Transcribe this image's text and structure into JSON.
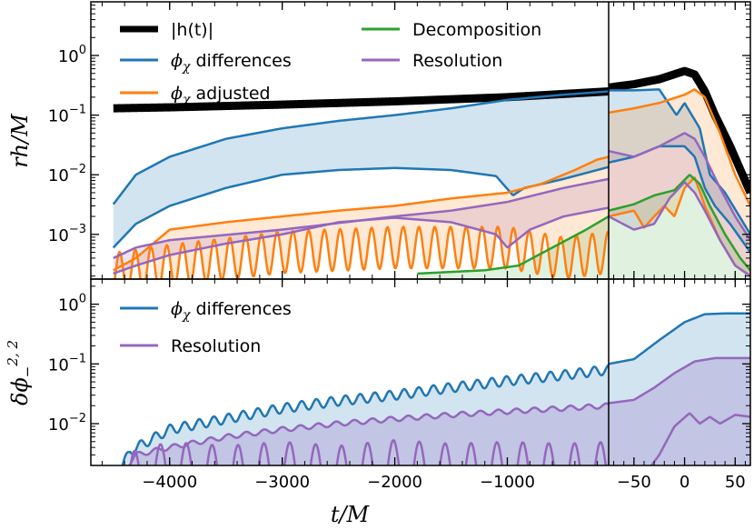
{
  "chart_data": {
    "type": "line",
    "xlabel": "t/M",
    "x_ticks_left": [
      "-4000",
      "-3000",
      "-2000",
      "-1000"
    ],
    "x_ticks_right": [
      "-50",
      "0",
      "50"
    ],
    "x_range_left": [
      -4700,
      -100
    ],
    "x_range_right": [
      -75,
      65
    ],
    "colors": {
      "black": "#000000",
      "blue": "#1f77b4",
      "orange": "#ff7f0e",
      "green": "#2ca02c",
      "purple": "#9467bd"
    },
    "top": {
      "ylabel": "rh/M",
      "y_tick_labels": [
        "10^-3",
        "10^-2",
        "10^-1",
        "10^0"
      ],
      "y_log_range": [
        -3.75,
        0.9
      ],
      "legend": [
        {
          "label": "|h(t)|",
          "color": "#000000",
          "math": false
        },
        {
          "label": "ϕ",
          "sub": "χ",
          "rest": " differences",
          "color": "#1f77b4",
          "math": true
        },
        {
          "label": "ϕ",
          "sub": "χ",
          "rest": " adjusted",
          "color": "#ff7f0e",
          "math": true
        },
        {
          "label": "Decomposition",
          "color": "#2ca02c",
          "math": false
        },
        {
          "label": "Resolution",
          "color": "#9467bd",
          "math": false
        }
      ],
      "series": [
        {
          "name": "|h(t)|",
          "color": "#000000",
          "width": 9,
          "points": [
            [
              -4500,
              0.13
            ],
            [
              -4000,
              0.135
            ],
            [
              -3000,
              0.15
            ],
            [
              -2000,
              0.17
            ],
            [
              -1000,
              0.2
            ],
            [
              -100,
              0.25
            ],
            [
              -75,
              0.29
            ],
            [
              -50,
              0.33
            ],
            [
              -25,
              0.4
            ],
            [
              0,
              0.55
            ],
            [
              10,
              0.48
            ],
            [
              20,
              0.25
            ],
            [
              30,
              0.1
            ],
            [
              45,
              0.03
            ],
            [
              65,
              0.005
            ]
          ]
        },
        {
          "name": "ϕχ differences (upper)",
          "color": "#1f77b4",
          "width": 2.5,
          "points": [
            [
              -4500,
              0.0032
            ],
            [
              -4300,
              0.01
            ],
            [
              -4000,
              0.02
            ],
            [
              -3500,
              0.04
            ],
            [
              -3000,
              0.06
            ],
            [
              -2500,
              0.08
            ],
            [
              -2000,
              0.1
            ],
            [
              -1500,
              0.13
            ],
            [
              -1000,
              0.18
            ],
            [
              -500,
              0.22
            ],
            [
              -100,
              0.25
            ],
            [
              -75,
              0.26
            ],
            [
              -50,
              0.26
            ],
            [
              -25,
              0.27
            ],
            [
              -15,
              0.15
            ],
            [
              -8,
              0.1
            ],
            [
              0,
              0.16
            ],
            [
              15,
              0.06
            ],
            [
              25,
              0.01
            ],
            [
              40,
              0.005
            ],
            [
              65,
              0.001
            ]
          ]
        },
        {
          "name": "ϕχ differences (lower)",
          "color": "#1f77b4",
          "width": 2.5,
          "points": [
            [
              -4500,
              0.0006
            ],
            [
              -4300,
              0.0015
            ],
            [
              -4000,
              0.003
            ],
            [
              -3500,
              0.006
            ],
            [
              -3000,
              0.01
            ],
            [
              -2500,
              0.012
            ],
            [
              -2000,
              0.013
            ],
            [
              -1500,
              0.012
            ],
            [
              -1100,
              0.0095
            ],
            [
              -950,
              0.0045
            ],
            [
              -850,
              0.006
            ],
            [
              -500,
              0.0085
            ],
            [
              -100,
              0.0135
            ],
            [
              -75,
              0.016
            ],
            [
              -50,
              0.02
            ],
            [
              -25,
              0.03
            ],
            [
              0,
              0.03
            ],
            [
              10,
              0.02
            ],
            [
              20,
              0.006
            ],
            [
              30,
              0.003
            ],
            [
              45,
              0.0015
            ],
            [
              65,
              0.0005
            ]
          ]
        },
        {
          "name": "ϕχ adjusted (upper)",
          "color": "#ff7f0e",
          "width": 2.5,
          "points": [
            [
              -4500,
              0.00025
            ],
            [
              -4300,
              0.0004
            ],
            [
              -4000,
              0.0012
            ],
            [
              -3500,
              0.0016
            ],
            [
              -3000,
              0.002
            ],
            [
              -2500,
              0.0025
            ],
            [
              -2000,
              0.003
            ],
            [
              -1500,
              0.004
            ],
            [
              -1000,
              0.005
            ],
            [
              -700,
              0.007
            ],
            [
              -400,
              0.012
            ],
            [
              -200,
              0.018
            ],
            [
              -100,
              0.02
            ],
            [
              -75,
              0.11
            ],
            [
              -50,
              0.13
            ],
            [
              -25,
              0.16
            ],
            [
              0,
              0.22
            ],
            [
              10,
              0.27
            ],
            [
              20,
              0.2
            ],
            [
              35,
              0.05
            ],
            [
              50,
              0.01
            ],
            [
              65,
              0.003
            ]
          ]
        },
        {
          "name": "ϕχ adjusted (lower, oscillating)",
          "color": "#ff7f0e",
          "width": 2.5,
          "oscillate": true,
          "osc_amp": 0.35,
          "osc_period": 140,
          "points": [
            [
              -4500,
              0.00022
            ],
            [
              -4000,
              0.0003
            ],
            [
              -3000,
              0.0005
            ],
            [
              -2000,
              0.0006
            ],
            [
              -1500,
              0.0006
            ],
            [
              -1000,
              0.0006
            ],
            [
              -500,
              0.0004
            ],
            [
              -100,
              0.0005
            ],
            [
              -75,
              0.002
            ],
            [
              -50,
              0.0025
            ],
            [
              -40,
              0.0013
            ],
            [
              -30,
              0.002
            ],
            [
              -20,
              0.003
            ],
            [
              -10,
              0.002
            ],
            [
              0,
              0.006
            ],
            [
              10,
              0.009
            ],
            [
              20,
              0.003
            ],
            [
              35,
              0.0008
            ],
            [
              50,
              0.0003
            ],
            [
              65,
              0.0002
            ]
          ]
        },
        {
          "name": "Decomposition",
          "color": "#2ca02c",
          "width": 2.5,
          "points": [
            [
              -1800,
              0.00022
            ],
            [
              -1200,
              0.00025
            ],
            [
              -900,
              0.0003
            ],
            [
              -600,
              0.0006
            ],
            [
              -300,
              0.0012
            ],
            [
              -100,
              0.002
            ],
            [
              -75,
              0.0025
            ],
            [
              -50,
              0.0032
            ],
            [
              -30,
              0.0045
            ],
            [
              -10,
              0.0055
            ],
            [
              5,
              0.01
            ],
            [
              15,
              0.007
            ],
            [
              25,
              0.003
            ],
            [
              40,
              0.001
            ],
            [
              55,
              0.0004
            ],
            [
              65,
              0.00025
            ]
          ]
        },
        {
          "name": "Resolution (upper)",
          "color": "#9467bd",
          "width": 2.5,
          "points": [
            [
              -4500,
              0.0004
            ],
            [
              -4300,
              0.0006
            ],
            [
              -4000,
              0.0008
            ],
            [
              -3000,
              0.0012
            ],
            [
              -2000,
              0.002
            ],
            [
              -1500,
              0.0025
            ],
            [
              -1000,
              0.0035
            ],
            [
              -500,
              0.006
            ],
            [
              -100,
              0.0085
            ],
            [
              -75,
              0.025
            ],
            [
              -50,
              0.02
            ],
            [
              -25,
              0.03
            ],
            [
              0,
              0.05
            ],
            [
              10,
              0.04
            ],
            [
              20,
              0.02
            ],
            [
              35,
              0.006
            ],
            [
              50,
              0.002
            ],
            [
              65,
              0.0008
            ]
          ]
        },
        {
          "name": "Resolution (lower)",
          "color": "#9467bd",
          "width": 2.5,
          "points": [
            [
              -4500,
              0.00022
            ],
            [
              -4300,
              0.0003
            ],
            [
              -4000,
              0.00045
            ],
            [
              -3500,
              0.0007
            ],
            [
              -3000,
              0.001
            ],
            [
              -2500,
              0.0016
            ],
            [
              -2000,
              0.0019
            ],
            [
              -1500,
              0.0016
            ],
            [
              -1100,
              0.001
            ],
            [
              -1000,
              0.0006
            ],
            [
              -800,
              0.0012
            ],
            [
              -500,
              0.002
            ],
            [
              -100,
              0.0028
            ],
            [
              -75,
              0.002
            ],
            [
              -50,
              0.0012
            ],
            [
              -30,
              0.0015
            ],
            [
              -15,
              0.004
            ],
            [
              0,
              0.0075
            ],
            [
              10,
              0.005
            ],
            [
              20,
              0.0025
            ],
            [
              35,
              0.0008
            ],
            [
              50,
              0.0003
            ],
            [
              65,
              0.0002
            ]
          ]
        }
      ],
      "fills": [
        {
          "upper": 1,
          "lower": 2,
          "color": "#1f77b4",
          "opacity": 0.2
        },
        {
          "upper": 3,
          "lower": 4,
          "color": "#ff7f0e",
          "opacity": 0.18
        },
        {
          "upper": 6,
          "lower": 7,
          "color": "#9467bd",
          "opacity": 0.18
        },
        {
          "upper": 5,
          "lower": "bottom",
          "color": "#2ca02c",
          "opacity": 0.15
        }
      ]
    },
    "bottom": {
      "ylabel": "δϕ",
      "ylabel_sub": "−",
      "ylabel_sup": "2, 2",
      "y_tick_labels": [
        "10^-2",
        "10^-1",
        "10^0"
      ],
      "y_log_range": [
        -2.7,
        0.42
      ],
      "legend": [
        {
          "label": "ϕ",
          "sub": "χ",
          "rest": " differences",
          "color": "#1f77b4",
          "math": true
        },
        {
          "label": "Resolution",
          "color": "#9467bd",
          "math": false
        }
      ],
      "series": [
        {
          "name": "ϕχ differences",
          "color": "#1f77b4",
          "width": 2.5,
          "oscillate": true,
          "osc_amp": 0.08,
          "osc_period": 130,
          "points": [
            [
              -4500,
              0.001
            ],
            [
              -4350,
              0.0035
            ],
            [
              -4000,
              0.008
            ],
            [
              -3500,
              0.012
            ],
            [
              -3000,
              0.018
            ],
            [
              -2500,
              0.024
            ],
            [
              -2000,
              0.03
            ],
            [
              -1500,
              0.04
            ],
            [
              -1000,
              0.052
            ],
            [
              -500,
              0.065
            ],
            [
              -100,
              0.08
            ],
            [
              -75,
              0.1
            ],
            [
              -50,
              0.12
            ],
            [
              -25,
              0.25
            ],
            [
              0,
              0.5
            ],
            [
              20,
              0.68
            ],
            [
              40,
              0.7
            ],
            [
              65,
              0.7
            ]
          ]
        },
        {
          "name": "Resolution (upper)",
          "color": "#9467bd",
          "width": 2.5,
          "oscillate": true,
          "osc_amp": 0.04,
          "osc_period": 160,
          "points": [
            [
              -4500,
              0.001
            ],
            [
              -4300,
              0.003
            ],
            [
              -4000,
              0.004
            ],
            [
              -3500,
              0.006
            ],
            [
              -3000,
              0.008
            ],
            [
              -2500,
              0.01
            ],
            [
              -2000,
              0.012
            ],
            [
              -1500,
              0.014
            ],
            [
              -1000,
              0.016
            ],
            [
              -500,
              0.018
            ],
            [
              -100,
              0.02
            ],
            [
              -75,
              0.022
            ],
            [
              -50,
              0.025
            ],
            [
              -30,
              0.04
            ],
            [
              -10,
              0.07
            ],
            [
              10,
              0.11
            ],
            [
              30,
              0.125
            ],
            [
              65,
              0.125
            ]
          ]
        },
        {
          "name": "Resolution (lower)",
          "color": "#9467bd",
          "width": 2.5,
          "oscillate": true,
          "osc_amp": 0.55,
          "osc_period": 230,
          "points": [
            [
              -4500,
              0.0008
            ],
            [
              -4000,
              0.0014
            ],
            [
              -3500,
              0.0012
            ],
            [
              -3000,
              0.0014
            ],
            [
              -2500,
              0.0012
            ],
            [
              -2000,
              0.0015
            ],
            [
              -1500,
              0.0013
            ],
            [
              -1000,
              0.0014
            ],
            [
              -500,
              0.0013
            ],
            [
              -100,
              0.0014
            ],
            [
              -75,
              0.0008
            ],
            [
              -50,
              0.0008
            ],
            [
              -25,
              0.003
            ],
            [
              -10,
              0.009
            ],
            [
              5,
              0.015
            ],
            [
              15,
              0.01
            ],
            [
              25,
              0.013
            ],
            [
              35,
              0.01
            ],
            [
              50,
              0.014
            ],
            [
              65,
              0.013
            ]
          ]
        }
      ],
      "fills": [
        {
          "upper": 0,
          "lower": "bottom",
          "color": "#1f77b4",
          "opacity": 0.2
        },
        {
          "upper": 1,
          "lower": "bottom",
          "color": "#9467bd",
          "opacity": 0.25
        }
      ]
    }
  }
}
